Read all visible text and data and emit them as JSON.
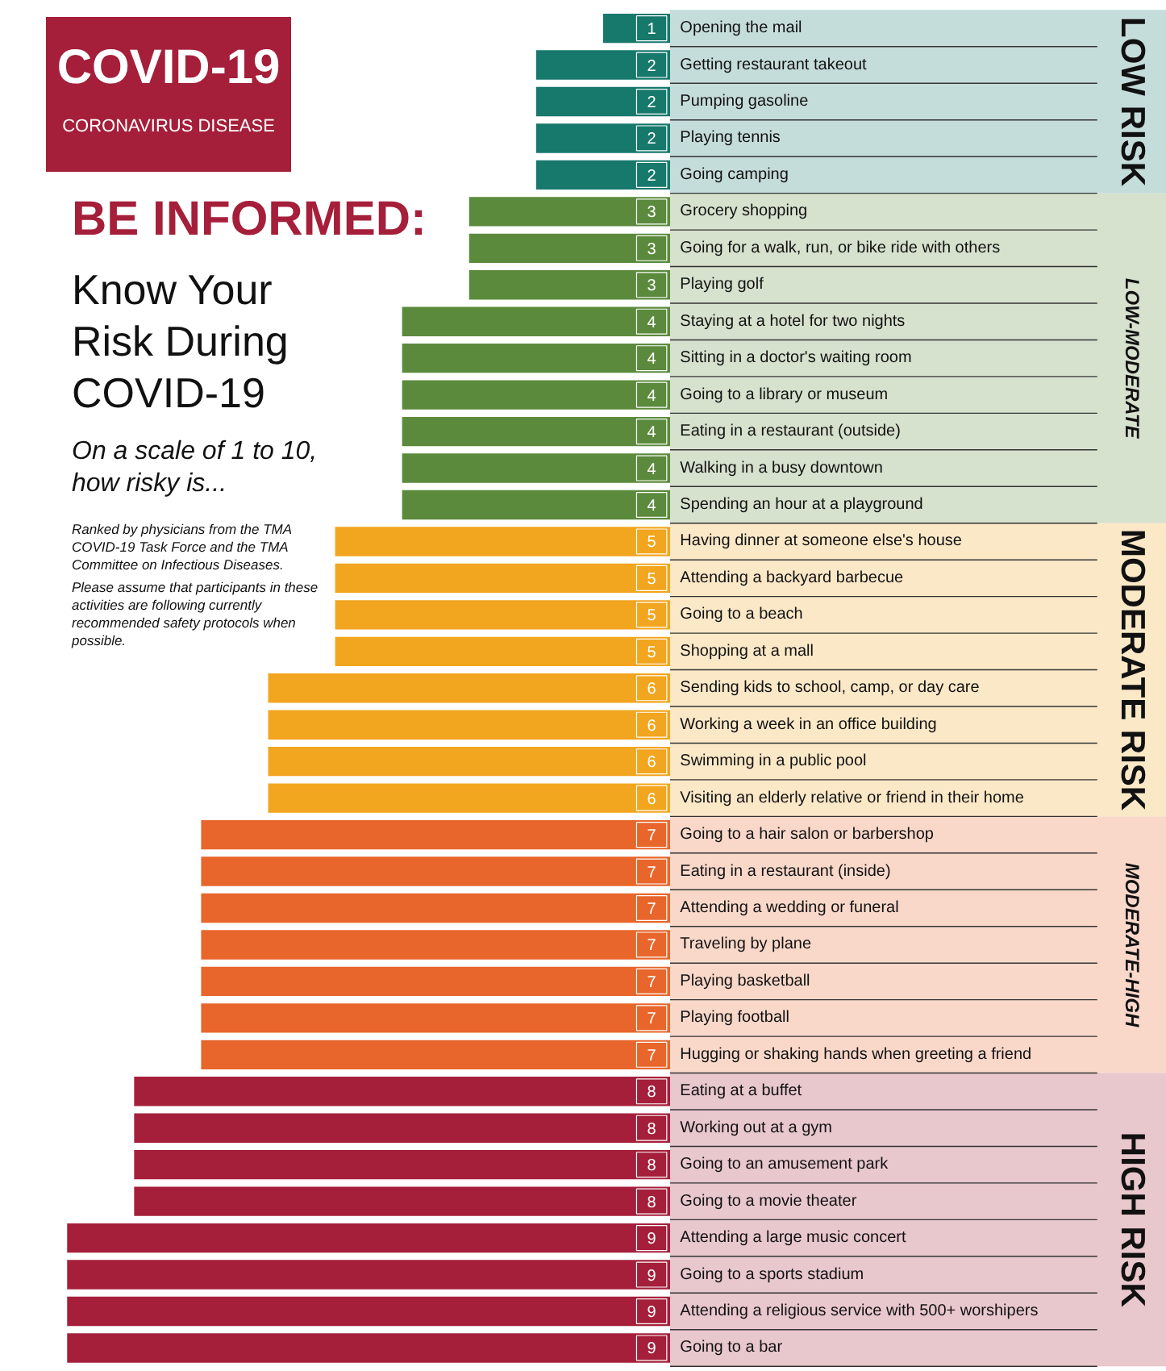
{
  "chart_data": {
    "type": "bar",
    "orientation": "horizontal",
    "data_labels": true,
    "title": "COVID-19",
    "subtitle": "CORONAVIRUS DISEASE",
    "annotations": [
      "BE INFORMED:",
      "Know Your Risk During COVID-19",
      "On a scale of 1 to 10, how risky is...",
      "Ranked by physicians from the TMA COVID-19 Task Force and the TMA Committee on Infectious Diseases.",
      "Please assume that participants in these activities are following currently recommended safety protocols when possible.",
      "LOW RISK",
      "LOW-MODERATE",
      "MODERATE RISK",
      "MODERATE-HIGH",
      "HIGH RISK"
    ],
    "categories": [
      "Opening the mail",
      "Getting restaurant takeout",
      "Pumping gasoline",
      "Playing tennis",
      "Going camping",
      "Grocery shopping",
      "Going for a walk, run, or bike ride with others",
      "Playing golf",
      "Staying at a hotel for two nights",
      "Sitting in a doctor's waiting room",
      "Going to a library or museum",
      "Eating in a restaurant (outside)",
      "Walking in a busy downtown",
      "Spending an hour at a playground",
      "Having dinner at someone else's house",
      "Attending a backyard barbecue",
      "Going to a beach",
      "Shopping at a mall",
      "Sending kids to school, camp, or day care",
      "Working a week in an office building",
      "Swimming in a public pool",
      "Visiting an elderly relative or friend in their home",
      "Going to a hair salon or barbershop",
      "Eating in a restaurant (inside)",
      "Attending a wedding or funeral",
      "Traveling by plane",
      "Playing basketball",
      "Playing football",
      "Hugging or shaking hands when greeting a friend",
      "Eating at a buffet",
      "Working out at a gym",
      "Going to an amusement park",
      "Going to a movie theater",
      "Attending a large music concert",
      "Going to a sports stadium",
      "Attending a religious service with 500+ worshipers",
      "Going to a bar"
    ],
    "values": [
      1,
      2,
      2,
      2,
      2,
      3,
      3,
      3,
      4,
      4,
      4,
      4,
      4,
      4,
      5,
      5,
      5,
      5,
      6,
      6,
      6,
      6,
      7,
      7,
      7,
      7,
      7,
      7,
      7,
      8,
      8,
      8,
      8,
      9,
      9,
      9,
      9
    ],
    "colors": [
      "#17786c",
      "#17786c",
      "#17786c",
      "#17786c",
      "#17786c",
      "#5b8a3c",
      "#5b8a3c",
      "#5b8a3c",
      "#5b8a3c",
      "#5b8a3c",
      "#5b8a3c",
      "#5b8a3c",
      "#5b8a3c",
      "#5b8a3c",
      "#f2a51f",
      "#f2a51f",
      "#f2a51f",
      "#f2a51f",
      "#f2a51f",
      "#f2a51f",
      "#f2a51f",
      "#f2a51f",
      "#e8662b",
      "#e8662b",
      "#e8662b",
      "#e8662b",
      "#e8662b",
      "#e8662b",
      "#e8662b",
      "#a51f3a",
      "#a51f3a",
      "#a51f3a",
      "#a51f3a",
      "#a51f3a",
      "#a51f3a",
      "#a51f3a",
      "#a51f3a"
    ]
  }
}
